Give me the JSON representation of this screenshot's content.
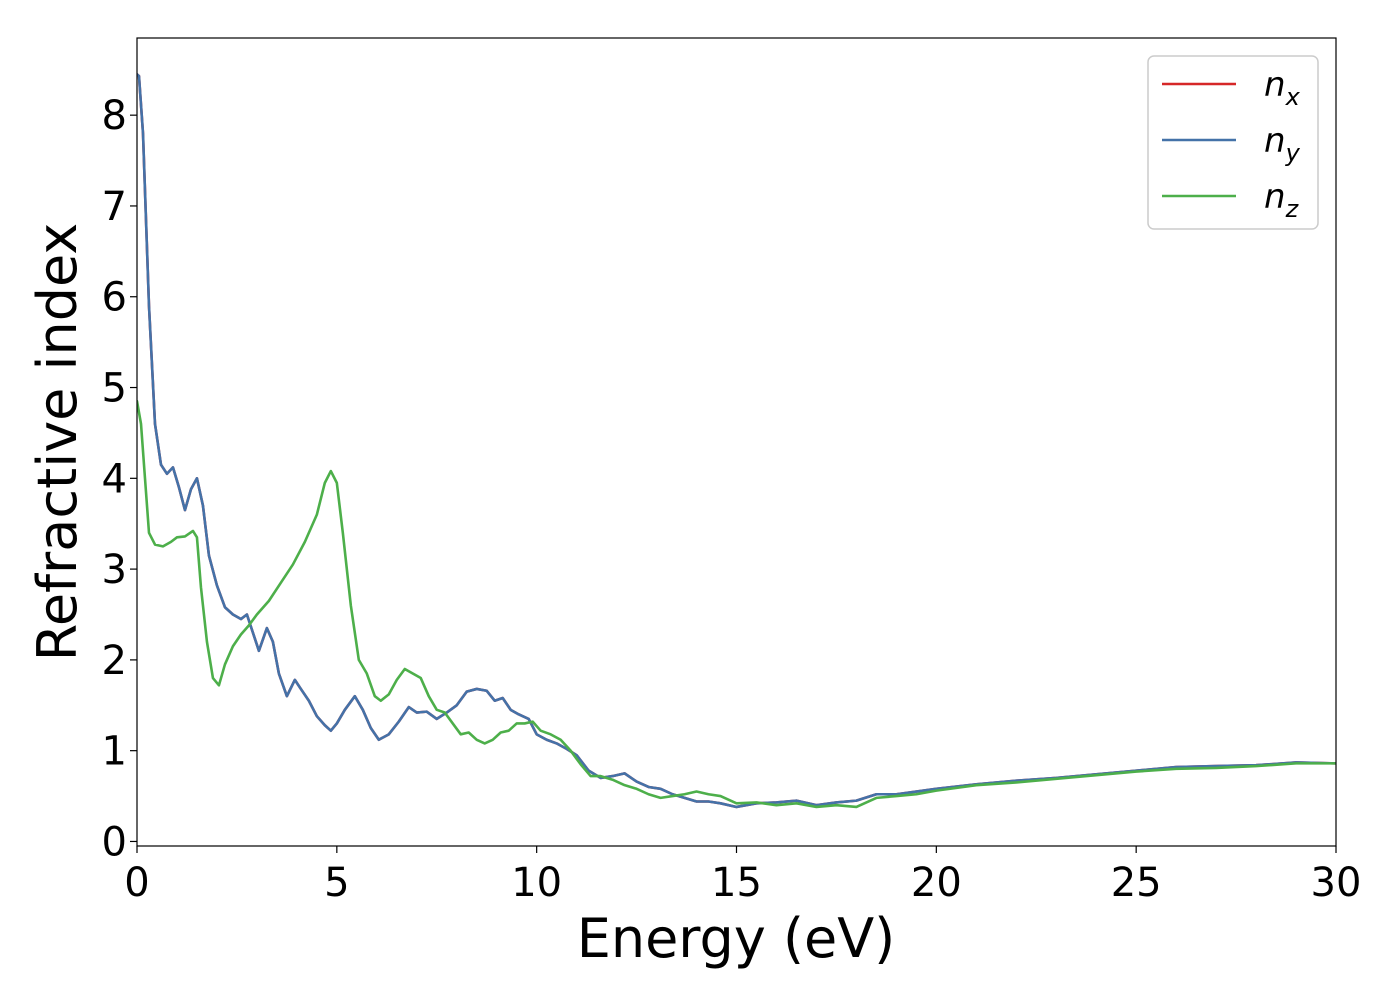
{
  "chart_data": {
    "type": "line",
    "title": "",
    "xlabel": "Energy (eV)",
    "ylabel": "Refractive index",
    "xlim": [
      0,
      30
    ],
    "ylim": [
      -0.05,
      8.85
    ],
    "xticks": [
      0,
      5,
      10,
      15,
      20,
      25,
      30
    ],
    "yticks": [
      0,
      1,
      2,
      3,
      4,
      5,
      6,
      7,
      8
    ],
    "grid": false,
    "legend_position": "top-right",
    "series": [
      {
        "name": "n",
        "subscript": "x",
        "color": "#d62728",
        "x": [
          0,
          0.05,
          0.15,
          0.3,
          0.45,
          0.6,
          0.75,
          0.9,
          1.05,
          1.2,
          1.35,
          1.5,
          1.65,
          1.8,
          2.0,
          2.2,
          2.4,
          2.6,
          2.75,
          2.9,
          3.05,
          3.25,
          3.4,
          3.55,
          3.75,
          3.95,
          4.1,
          4.3,
          4.5,
          4.7,
          4.85,
          5.0,
          5.2,
          5.45,
          5.65,
          5.85,
          6.05,
          6.3,
          6.55,
          6.8,
          7.0,
          7.25,
          7.5,
          7.75,
          8.0,
          8.25,
          8.5,
          8.75,
          8.95,
          9.15,
          9.35,
          9.55,
          9.8,
          10.0,
          10.25,
          10.5,
          10.75,
          11.0,
          11.3,
          11.6,
          11.9,
          12.2,
          12.5,
          12.8,
          13.1,
          13.4,
          13.7,
          14.0,
          14.3,
          14.6,
          15.0,
          15.5,
          16.0,
          16.5,
          17.0,
          17.5,
          18.0,
          18.5,
          19.0,
          19.5,
          20.0,
          21.0,
          22.0,
          23.0,
          24.0,
          25.0,
          26.0,
          27.0,
          28.0,
          29.0,
          30.0
        ],
        "y": [
          8.45,
          8.43,
          7.8,
          5.9,
          4.6,
          4.15,
          4.05,
          4.12,
          3.9,
          3.65,
          3.88,
          4.0,
          3.7,
          3.15,
          2.82,
          2.58,
          2.5,
          2.45,
          2.5,
          2.3,
          2.1,
          2.35,
          2.2,
          1.85,
          1.6,
          1.78,
          1.68,
          1.55,
          1.38,
          1.28,
          1.22,
          1.3,
          1.45,
          1.6,
          1.45,
          1.25,
          1.12,
          1.18,
          1.32,
          1.48,
          1.42,
          1.43,
          1.35,
          1.42,
          1.5,
          1.65,
          1.68,
          1.66,
          1.55,
          1.58,
          1.45,
          1.4,
          1.35,
          1.18,
          1.12,
          1.08,
          1.02,
          0.95,
          0.78,
          0.7,
          0.72,
          0.75,
          0.66,
          0.6,
          0.58,
          0.52,
          0.48,
          0.44,
          0.44,
          0.42,
          0.38,
          0.42,
          0.43,
          0.45,
          0.4,
          0.43,
          0.45,
          0.52,
          0.52,
          0.55,
          0.58,
          0.63,
          0.67,
          0.7,
          0.74,
          0.78,
          0.82,
          0.83,
          0.84,
          0.87,
          0.86
        ]
      },
      {
        "name": "n",
        "subscript": "y",
        "color": "#4472a8",
        "x": [
          0,
          0.05,
          0.15,
          0.3,
          0.45,
          0.6,
          0.75,
          0.9,
          1.05,
          1.2,
          1.35,
          1.5,
          1.65,
          1.8,
          2.0,
          2.2,
          2.4,
          2.6,
          2.75,
          2.9,
          3.05,
          3.25,
          3.4,
          3.55,
          3.75,
          3.95,
          4.1,
          4.3,
          4.5,
          4.7,
          4.85,
          5.0,
          5.2,
          5.45,
          5.65,
          5.85,
          6.05,
          6.3,
          6.55,
          6.8,
          7.0,
          7.25,
          7.5,
          7.75,
          8.0,
          8.25,
          8.5,
          8.75,
          8.95,
          9.15,
          9.35,
          9.55,
          9.8,
          10.0,
          10.25,
          10.5,
          10.75,
          11.0,
          11.3,
          11.6,
          11.9,
          12.2,
          12.5,
          12.8,
          13.1,
          13.4,
          13.7,
          14.0,
          14.3,
          14.6,
          15.0,
          15.5,
          16.0,
          16.5,
          17.0,
          17.5,
          18.0,
          18.5,
          19.0,
          19.5,
          20.0,
          21.0,
          22.0,
          23.0,
          24.0,
          25.0,
          26.0,
          27.0,
          28.0,
          29.0,
          30.0
        ],
        "y": [
          8.45,
          8.43,
          7.8,
          5.9,
          4.6,
          4.15,
          4.05,
          4.12,
          3.9,
          3.65,
          3.88,
          4.0,
          3.7,
          3.15,
          2.82,
          2.58,
          2.5,
          2.45,
          2.5,
          2.3,
          2.1,
          2.35,
          2.2,
          1.85,
          1.6,
          1.78,
          1.68,
          1.55,
          1.38,
          1.28,
          1.22,
          1.3,
          1.45,
          1.6,
          1.45,
          1.25,
          1.12,
          1.18,
          1.32,
          1.48,
          1.42,
          1.43,
          1.35,
          1.42,
          1.5,
          1.65,
          1.68,
          1.66,
          1.55,
          1.58,
          1.45,
          1.4,
          1.35,
          1.18,
          1.12,
          1.08,
          1.02,
          0.95,
          0.78,
          0.7,
          0.72,
          0.75,
          0.66,
          0.6,
          0.58,
          0.52,
          0.48,
          0.44,
          0.44,
          0.42,
          0.38,
          0.42,
          0.43,
          0.45,
          0.4,
          0.43,
          0.45,
          0.52,
          0.52,
          0.55,
          0.58,
          0.63,
          0.67,
          0.7,
          0.74,
          0.78,
          0.82,
          0.83,
          0.84,
          0.87,
          0.86
        ]
      },
      {
        "name": "n",
        "subscript": "z",
        "color": "#4daf4a",
        "x": [
          0,
          0.1,
          0.2,
          0.3,
          0.45,
          0.65,
          0.85,
          1.0,
          1.2,
          1.4,
          1.5,
          1.6,
          1.75,
          1.9,
          2.05,
          2.2,
          2.4,
          2.6,
          2.8,
          3.0,
          3.3,
          3.6,
          3.9,
          4.2,
          4.5,
          4.7,
          4.85,
          5.0,
          5.15,
          5.35,
          5.55,
          5.75,
          5.95,
          6.1,
          6.3,
          6.5,
          6.7,
          6.9,
          7.1,
          7.3,
          7.5,
          7.7,
          7.9,
          8.1,
          8.3,
          8.5,
          8.7,
          8.9,
          9.1,
          9.3,
          9.5,
          9.7,
          9.9,
          10.1,
          10.35,
          10.6,
          10.85,
          11.1,
          11.35,
          11.6,
          11.9,
          12.2,
          12.5,
          12.8,
          13.1,
          13.4,
          13.7,
          14.0,
          14.3,
          14.6,
          15.0,
          15.5,
          16.0,
          16.5,
          17.0,
          17.5,
          18.0,
          18.5,
          19.0,
          19.5,
          20.0,
          21.0,
          22.0,
          23.0,
          24.0,
          25.0,
          26.0,
          27.0,
          28.0,
          29.0,
          30.0
        ],
        "y": [
          4.85,
          4.6,
          4.0,
          3.4,
          3.27,
          3.25,
          3.3,
          3.35,
          3.36,
          3.42,
          3.35,
          2.8,
          2.2,
          1.8,
          1.72,
          1.95,
          2.15,
          2.28,
          2.38,
          2.5,
          2.65,
          2.85,
          3.05,
          3.3,
          3.6,
          3.95,
          4.08,
          3.95,
          3.4,
          2.6,
          2.0,
          1.85,
          1.6,
          1.55,
          1.62,
          1.78,
          1.9,
          1.85,
          1.8,
          1.6,
          1.45,
          1.42,
          1.3,
          1.18,
          1.2,
          1.12,
          1.08,
          1.12,
          1.2,
          1.22,
          1.3,
          1.3,
          1.32,
          1.22,
          1.18,
          1.12,
          1.0,
          0.85,
          0.72,
          0.72,
          0.68,
          0.62,
          0.58,
          0.52,
          0.48,
          0.5,
          0.52,
          0.55,
          0.52,
          0.5,
          0.42,
          0.43,
          0.4,
          0.42,
          0.38,
          0.4,
          0.38,
          0.48,
          0.5,
          0.52,
          0.56,
          0.62,
          0.65,
          0.69,
          0.73,
          0.77,
          0.8,
          0.81,
          0.83,
          0.86,
          0.86
        ]
      }
    ]
  }
}
